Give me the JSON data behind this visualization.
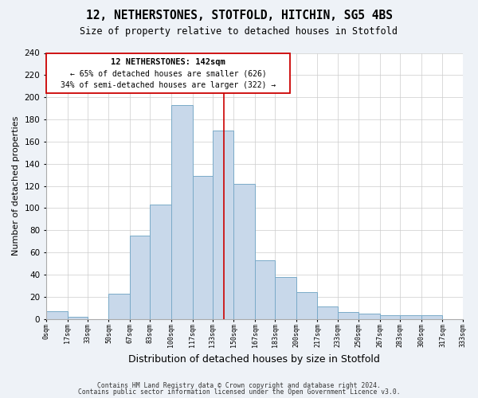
{
  "title1": "12, NETHERSTONES, STOTFOLD, HITCHIN, SG5 4BS",
  "title2": "Size of property relative to detached houses in Stotfold",
  "xlabel": "Distribution of detached houses by size in Stotfold",
  "ylabel": "Number of detached properties",
  "footer1": "Contains HM Land Registry data © Crown copyright and database right 2024.",
  "footer2": "Contains public sector information licensed under the Open Government Licence v3.0.",
  "annotation_line1": "12 NETHERSTONES: 142sqm",
  "annotation_line2": "← 65% of detached houses are smaller (626)",
  "annotation_line3": "34% of semi-detached houses are larger (322) →",
  "bar_color": "#c8d8ea",
  "bar_edge_color": "#7aaac8",
  "ref_line_color": "#cc0000",
  "ref_line_x": 142,
  "bin_edges": [
    0,
    17,
    33,
    50,
    67,
    83,
    100,
    117,
    133,
    150,
    167,
    183,
    200,
    217,
    233,
    250,
    267,
    283,
    300,
    317,
    333
  ],
  "bin_heights": [
    7,
    2,
    0,
    23,
    75,
    103,
    193,
    129,
    170,
    122,
    53,
    38,
    24,
    11,
    6,
    5,
    3,
    3,
    3,
    0
  ],
  "tick_labels": [
    "0sqm",
    "17sqm",
    "33sqm",
    "50sqm",
    "67sqm",
    "83sqm",
    "100sqm",
    "117sqm",
    "133sqm",
    "150sqm",
    "167sqm",
    "183sqm",
    "200sqm",
    "217sqm",
    "233sqm",
    "250sqm",
    "267sqm",
    "283sqm",
    "300sqm",
    "317sqm",
    "333sqm"
  ],
  "ylim": [
    0,
    240
  ],
  "yticks": [
    0,
    20,
    40,
    60,
    80,
    100,
    120,
    140,
    160,
    180,
    200,
    220,
    240
  ],
  "background_color": "#eef2f7",
  "plot_bg_color": "#ffffff",
  "grid_color": "#cccccc"
}
